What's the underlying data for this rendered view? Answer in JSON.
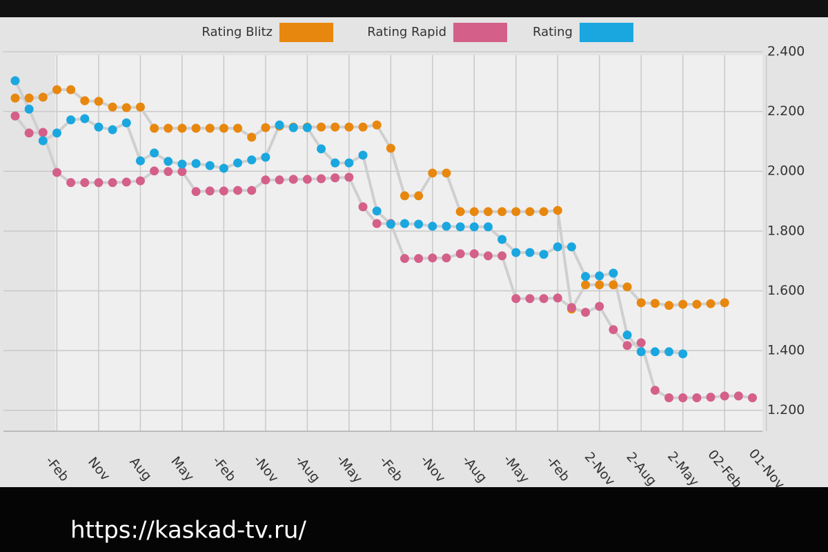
{
  "chart_data": {
    "type": "line",
    "categories": [
      null,
      null,
      null,
      "-Feb",
      null,
      null,
      "Nov",
      null,
      null,
      "Aug",
      null,
      null,
      "May",
      null,
      null,
      "-Feb",
      null,
      null,
      "-Nov",
      null,
      null,
      "-Aug",
      null,
      null,
      "-May",
      null,
      null,
      "-Feb",
      null,
      null,
      "-Nov",
      null,
      null,
      "-Aug",
      null,
      null,
      "-May",
      null,
      null,
      "-Feb",
      null,
      null,
      "2-Nov",
      null,
      null,
      "2-Aug",
      null,
      null,
      "2-May",
      null,
      null,
      "02-Feb",
      null,
      null,
      "01-Nov"
    ],
    "series": [
      {
        "name": "Rating Blitz",
        "color": "#e8870e",
        "values": [
          2245,
          2245,
          2248,
          2273,
          2273,
          2236,
          2234,
          2215,
          2213,
          2215,
          2144,
          2144,
          2144,
          2144,
          2144,
          2144,
          2144,
          2114,
          2146,
          2151,
          2148,
          2148,
          2148,
          2148,
          2148,
          2148,
          2155,
          2077,
          1918,
          1918,
          1994,
          1994,
          1865,
          1865,
          1865,
          1865,
          1865,
          1865,
          1865,
          1869,
          1539,
          1620,
          1620,
          1620,
          1613,
          1560,
          1558,
          1551,
          1555,
          1555,
          1557,
          1560,
          null,
          null,
          null
        ]
      },
      {
        "name": "Rating Rapid",
        "color": "#d4608a",
        "values": [
          2185,
          2128,
          2130,
          1996,
          1962,
          1962,
          1962,
          1962,
          1964,
          1968,
          2001,
          1999,
          1999,
          1932,
          1934,
          1934,
          1936,
          1936,
          1971,
          1971,
          1973,
          1973,
          1975,
          1978,
          1980,
          1881,
          1825,
          1825,
          1708,
          1708,
          1710,
          1710,
          1724,
          1724,
          1717,
          1717,
          1574,
          1574,
          1574,
          1576,
          1544,
          1528,
          1548,
          1470,
          1417,
          1426,
          1267,
          1242,
          1242,
          1242,
          1244,
          1248,
          1248,
          1242,
          null
        ]
      },
      {
        "name": "Rating",
        "color": "#1aa7e0",
        "values": [
          2303,
          2208,
          2102,
          2128,
          2172,
          2176,
          2148,
          2139,
          2162,
          2035,
          2061,
          2033,
          2024,
          2026,
          2019,
          2010,
          2028,
          2038,
          2047,
          2155,
          2146,
          2146,
          2075,
          2028,
          2028,
          2054,
          1867,
          1823,
          1825,
          1823,
          1816,
          1816,
          1814,
          1814,
          1814,
          1772,
          1728,
          1728,
          1722,
          1747,
          1747,
          1648,
          1650,
          1659,
          1452,
          1396,
          1396,
          1396,
          1389,
          null,
          null,
          null,
          null,
          null,
          null
        ]
      }
    ],
    "ylim": [
      1130,
      2400
    ],
    "yticks": [
      {
        "value": 1200,
        "label": "1.200"
      },
      {
        "value": 1400,
        "label": "1.400"
      },
      {
        "value": 1600,
        "label": "1.600"
      },
      {
        "value": 1800,
        "label": "1.800"
      },
      {
        "value": 2000,
        "label": "2.000"
      },
      {
        "value": 2200,
        "label": "2.200"
      },
      {
        "value": 2400,
        "label": "2.400"
      }
    ],
    "grid": true,
    "line_color": "#cfcfcf"
  },
  "caption": "https://kaskad-tv.ru/"
}
